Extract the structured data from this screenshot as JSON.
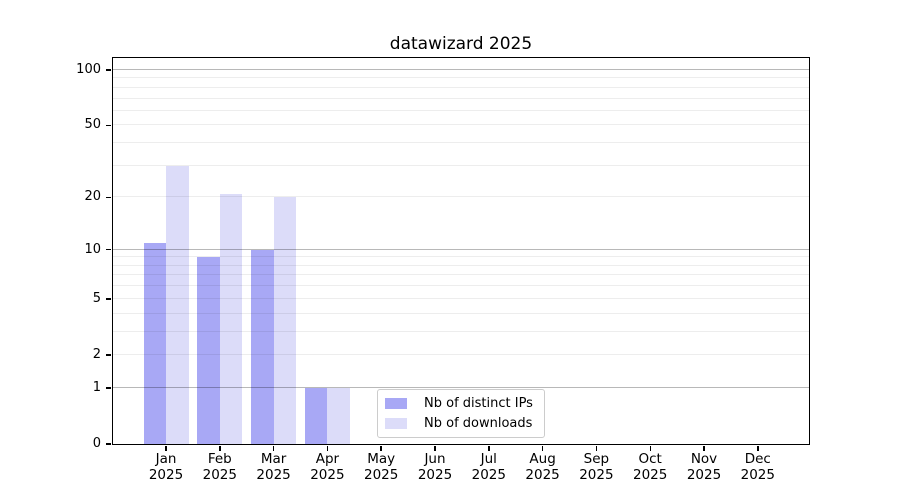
{
  "title": "datawizard 2025",
  "chart_data": {
    "type": "bar",
    "categories": [
      "Jan",
      "Feb",
      "Mar",
      "Apr",
      "May",
      "Jun",
      "Jul",
      "Aug",
      "Sep",
      "Oct",
      "Nov",
      "Dec"
    ],
    "year": "2025",
    "series": [
      {
        "name": "Nb of distinct IPs",
        "color": "#a8a8f5",
        "values": [
          11,
          9,
          10,
          1,
          0,
          0,
          0,
          0,
          0,
          0,
          0,
          0
        ]
      },
      {
        "name": "Nb of downloads",
        "color": "#dcdcf9",
        "values": [
          30,
          21,
          20,
          1,
          0,
          0,
          0,
          0,
          0,
          0,
          0,
          0
        ]
      }
    ],
    "title": "datawizard 2025",
    "xlabel": "",
    "ylabel": "",
    "yscale": "log1p",
    "ylim": [
      0,
      116
    ],
    "ymax": 116,
    "ytick_values": [
      0,
      1,
      2,
      5,
      10,
      20,
      50,
      100
    ],
    "grid_major_values": [
      1,
      10,
      100
    ],
    "grid_minor_values": [
      2,
      3,
      4,
      5,
      6,
      7,
      8,
      9,
      20,
      30,
      40,
      50,
      60,
      70,
      80,
      90
    ],
    "grid": "on",
    "legend_position": "lower-center",
    "bar_mode": "grouped-adjacent"
  },
  "colors": {
    "series_dark": "#a8a8f5",
    "series_light": "#dcdcf9",
    "axis": "#000000",
    "grid_major": "#b8b8b8",
    "grid_minor": "#ececec",
    "legend_border": "#cccccc"
  }
}
